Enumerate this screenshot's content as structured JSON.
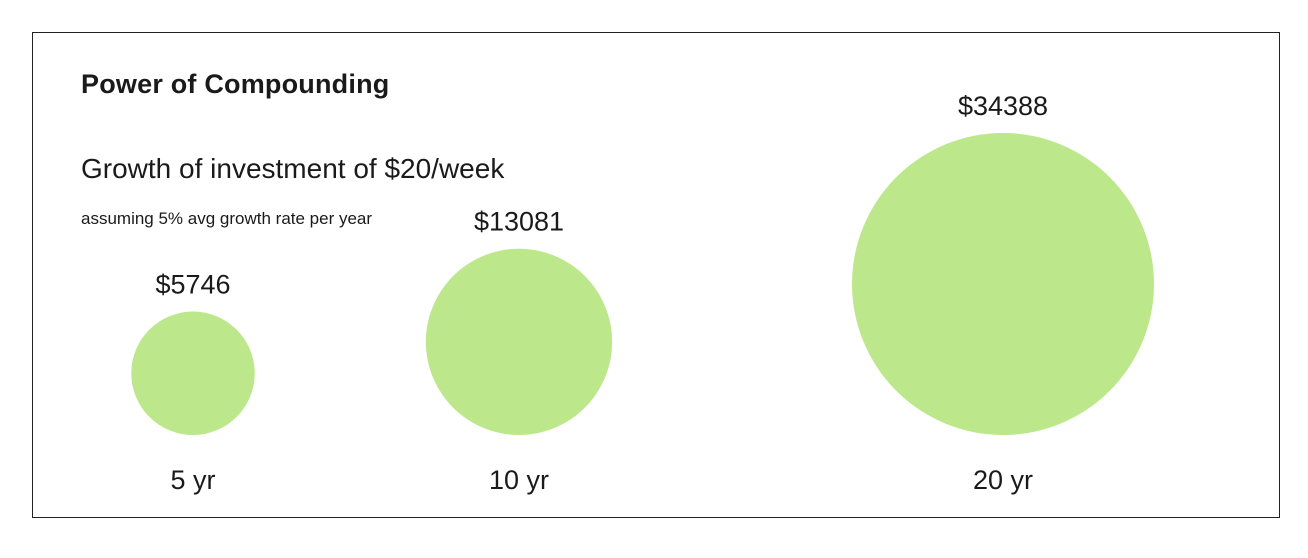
{
  "chart_data": {
    "type": "bubble",
    "title": "Power of Compounding",
    "subtitle": "Growth of investment of $20/week",
    "note": "assuming 5% avg growth rate per year",
    "categories": [
      "5 yr",
      "10 yr",
      "20 yr"
    ],
    "values": [
      5746,
      13081,
      34388
    ],
    "value_labels": [
      "$5746",
      "$13081",
      "$34388"
    ],
    "color": "#bde78b"
  }
}
